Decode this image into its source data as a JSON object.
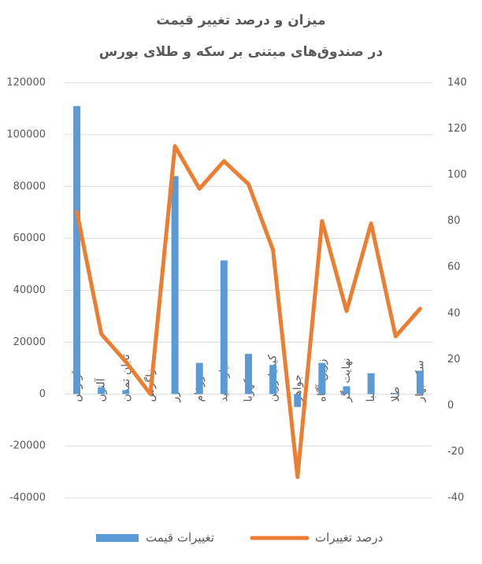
{
  "chart_data": {
    "type": "bar",
    "title": "میزان و درصد تغییر قیمت",
    "subtitle": "در صندوق‌های مبتنی بر سکه و طلای بورس",
    "categories": [
      "لوتوس",
      "آلتون",
      "تابان تمدن",
      "زاگرس",
      "زر",
      "زرفام",
      "عیار مفید",
      "کهربا",
      "کیمیا زرین",
      "جواهر",
      "زرین آگاه",
      "نهایت نگر",
      "صبا",
      "طلا",
      "سکه بهار"
    ],
    "series": [
      {
        "name": "تغییرات قیمت",
        "type": "bar",
        "color": "#5b9bd5",
        "values": [
          111000,
          2500,
          1500,
          0,
          84000,
          12000,
          51500,
          15500,
          11200,
          -5000,
          12000,
          3000,
          8000,
          300,
          9000
        ]
      },
      {
        "name": "درصد تغییرات",
        "type": "line",
        "axis": "y2",
        "color": "#ed7d31",
        "values": [
          84,
          31,
          19,
          5,
          112.5,
          94,
          106,
          96,
          67.5,
          -31,
          80,
          41,
          79,
          30,
          42
        ]
      }
    ],
    "ylim": [
      -40000,
      120000
    ],
    "yticks": [
      -40000,
      -20000,
      0,
      20000,
      40000,
      60000,
      80000,
      100000,
      120000
    ],
    "y2lim": [
      -40,
      140
    ],
    "y2ticks": [
      -40,
      -20,
      0,
      20,
      40,
      60,
      80,
      100,
      120,
      140
    ],
    "grid": true,
    "legend": "bottom"
  }
}
